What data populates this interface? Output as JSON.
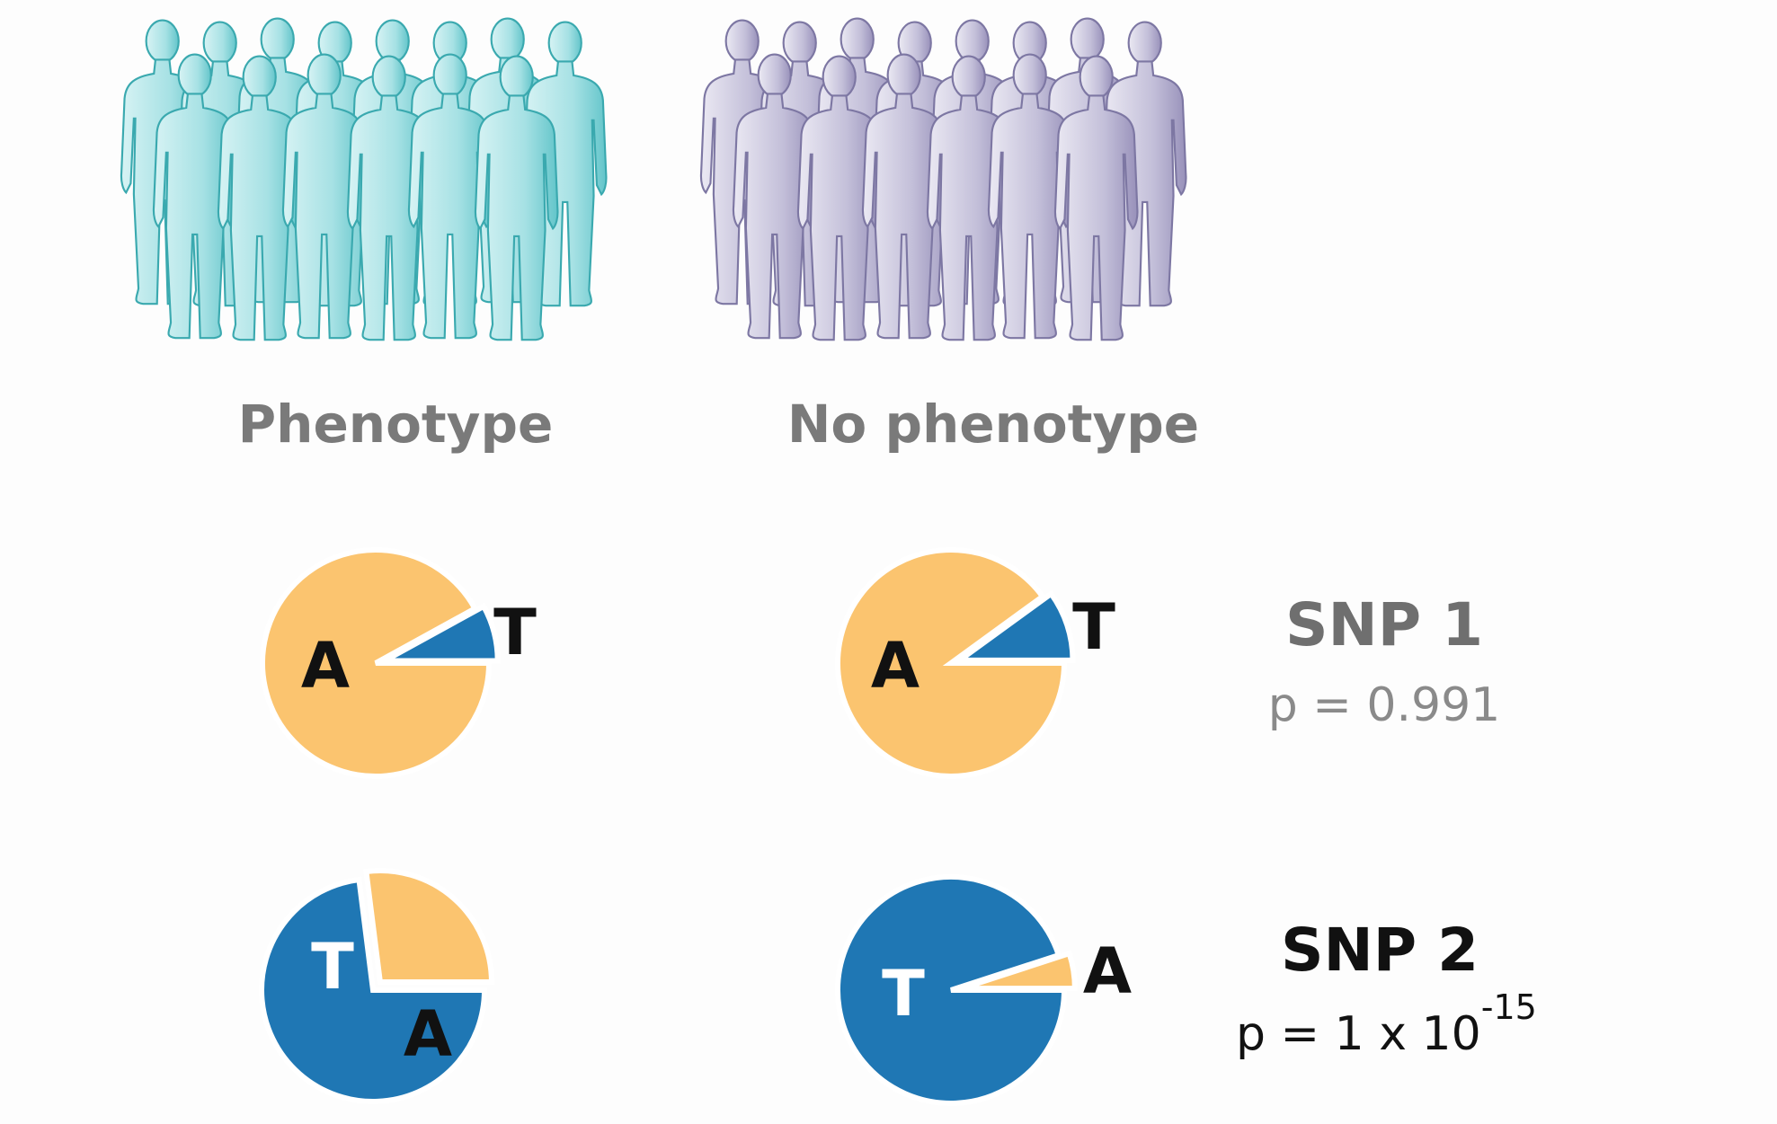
{
  "groups": {
    "phenotype": {
      "label": "Phenotype",
      "color_light": "#c9eef0",
      "color_dark": "#5cc3c8",
      "outline": "#3aa9af"
    },
    "no_phenotype": {
      "label": "No phenotype",
      "color_light": "#e2e0ee",
      "color_dark": "#9e98bd",
      "outline": "#7d77a3"
    }
  },
  "colors": {
    "allele_A": "#fbc46f",
    "allele_T": "#1f77b4",
    "label_dark": "#111111",
    "label_light": "#ffffff"
  },
  "snps": [
    {
      "title": "SNP 1",
      "p_text": "p = 0.991",
      "emphasis": false,
      "phenotype_pie": {
        "major_label": "A",
        "minor_label": "T",
        "minor_fraction": 0.08
      },
      "no_phenotype_pie": {
        "major_label": "A",
        "minor_label": "T",
        "minor_fraction": 0.1
      }
    },
    {
      "title": "SNP 2",
      "p_base": "p = 1 x 10",
      "p_exponent": "-15",
      "emphasis": true,
      "phenotype_pie": {
        "major_label": "T",
        "minor_label": "A",
        "minor_fraction": 0.27
      },
      "no_phenotype_pie": {
        "major_label": "T",
        "minor_label": "A",
        "minor_fraction": 0.05
      }
    }
  ]
}
